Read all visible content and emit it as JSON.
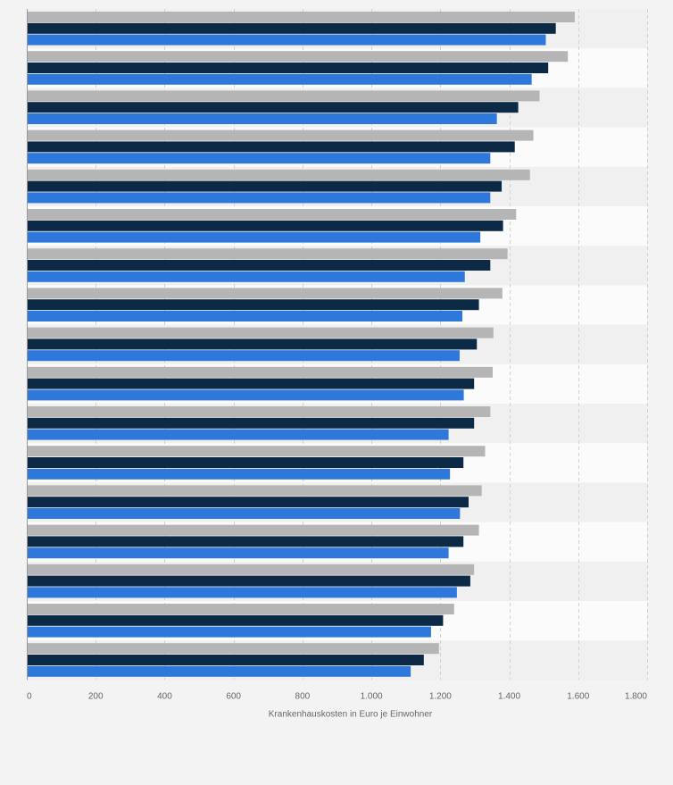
{
  "chart_data": {
    "type": "bar",
    "orientation": "horizontal",
    "title": "",
    "xlabel": "Krankenhauskosten in Euro je Einwohner",
    "ylabel": "",
    "xlim": [
      0,
      1800
    ],
    "x_ticks": [
      0,
      200,
      400,
      600,
      800,
      1000,
      1200,
      1400,
      1600,
      1800
    ],
    "x_tick_labels": [
      "0",
      "200",
      "400",
      "600",
      "800",
      "1.000",
      "1.200",
      "1.400",
      "1.600",
      "1.800"
    ],
    "grid": true,
    "legend": "none",
    "categories": [
      "",
      "",
      "",
      "",
      "",
      "",
      "",
      "",
      "",
      "",
      "",
      "",
      "",
      "",
      "",
      "",
      ""
    ],
    "series": [
      {
        "color": "#b5b5b5",
        "values": [
          1590,
          1570,
          1488,
          1470,
          1460,
          1420,
          1395,
          1380,
          1354,
          1352,
          1345,
          1330,
          1320,
          1312,
          1298,
          1240,
          1196
        ]
      },
      {
        "color": "#0c2a45",
        "values": [
          1535,
          1513,
          1426,
          1416,
          1378,
          1382,
          1345,
          1312,
          1306,
          1298,
          1298,
          1267,
          1282,
          1267,
          1287,
          1208,
          1152
        ]
      },
      {
        "color": "#2e78dc",
        "values": [
          1506,
          1465,
          1364,
          1345,
          1345,
          1316,
          1271,
          1264,
          1256,
          1268,
          1224,
          1228,
          1257,
          1224,
          1248,
          1173,
          1114
        ]
      }
    ]
  }
}
